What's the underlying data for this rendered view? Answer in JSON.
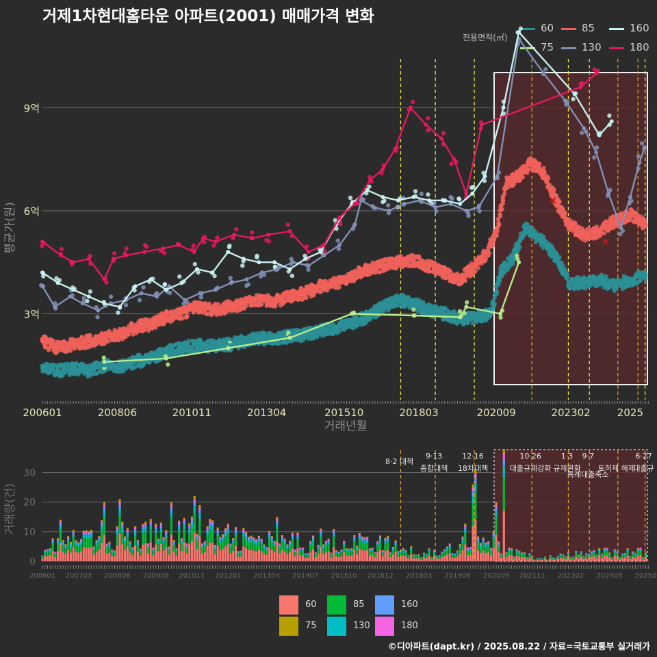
{
  "title": "거제1차현대홈타운 아파트(2001) 매매가격 변화",
  "footer": "©디아파트(dapt.kr) / 2025.08.22 / 자료=국토교통부 실거래가",
  "colors": {
    "60": "#2a9196",
    "75": "#b8ec8c",
    "85": "#f0615b",
    "130": "#8290b6",
    "160": "#c7f0ef",
    "180": "#e5195e",
    "bar60": "#f8766d",
    "bar75": "#b79f00",
    "bar85": "#00ba38",
    "bar130": "#00bfc4",
    "bar160": "#619cff",
    "bar180": "#f564e3",
    "event_orange": "#e0a020",
    "event_yellow": "#e8e83a",
    "highlight_fill": "#5a2a2c"
  },
  "legend_top": {
    "title": "전용면적(㎡)",
    "items": [
      {
        "label": "60",
        "color_key": "60"
      },
      {
        "label": "85",
        "color_key": "85"
      },
      {
        "label": "160",
        "color_key": "160"
      },
      {
        "label": "75",
        "color_key": "75"
      },
      {
        "label": "130",
        "color_key": "130"
      },
      {
        "label": "180",
        "color_key": "180"
      }
    ]
  },
  "legend_bottom": {
    "items": [
      {
        "label": "60",
        "color_key": "bar60"
      },
      {
        "label": "85",
        "color_key": "bar85"
      },
      {
        "label": "160",
        "color_key": "bar160"
      },
      {
        "label": "75",
        "color_key": "bar75"
      },
      {
        "label": "130",
        "color_key": "bar130"
      },
      {
        "label": "180",
        "color_key": "bar180"
      }
    ]
  },
  "chart_data": [
    {
      "type": "line",
      "id": "price",
      "ylabel": "평균가(원)",
      "xlabel": "거래년월",
      "ylim": [
        0.5,
        10.5
      ],
      "y_ticks": [
        {
          "v": 3,
          "label": "3억"
        },
        {
          "v": 6,
          "label": "6억"
        },
        {
          "v": 9,
          "label": "9억"
        }
      ],
      "x_range": [
        2006.0,
        2025.6
      ],
      "x_ticks": [
        {
          "v": 2006.0,
          "label": "200601"
        },
        {
          "v": 2008.42,
          "label": "200806"
        },
        {
          "v": 2010.83,
          "label": "201011"
        },
        {
          "v": 2013.25,
          "label": "201304"
        },
        {
          "v": 2015.75,
          "label": "201510"
        },
        {
          "v": 2018.17,
          "label": "201803"
        },
        {
          "v": 2020.67,
          "label": "202009"
        },
        {
          "v": 2023.08,
          "label": "202302"
        },
        {
          "v": 2025.0,
          "label": "2025"
        }
      ],
      "highlight_range": [
        2020.6,
        2025.6
      ],
      "events": [
        {
          "x": 2017.58,
          "style": "yellow"
        },
        {
          "x": 2018.7,
          "style": "yellow"
        },
        {
          "x": 2019.96,
          "style": "yellow"
        },
        {
          "x": 2021.82,
          "style": "orange"
        },
        {
          "x": 2023.0,
          "style": "yellow"
        },
        {
          "x": 2023.68,
          "style": "yellow"
        },
        {
          "x": 2024.6,
          "style": "orange"
        },
        {
          "x": 2025.25,
          "style": "orange"
        },
        {
          "x": 2025.48,
          "style": "yellow"
        }
      ],
      "markers": [
        {
          "x": 2022.5,
          "y": 6.3,
          "series": "85"
        },
        {
          "x": 2024.2,
          "y": 5.1,
          "series": "85"
        }
      ],
      "series": [
        {
          "name": "60",
          "color_key": "60",
          "x": [
            2006.0,
            2006.5,
            2007.0,
            2007.5,
            2008.0,
            2008.5,
            2009.0,
            2009.5,
            2010.0,
            2010.5,
            2011.0,
            2011.5,
            2012.0,
            2012.5,
            2013.0,
            2013.5,
            2014.0,
            2014.5,
            2015.0,
            2015.5,
            2016.0,
            2016.5,
            2017.0,
            2017.5,
            2018.0,
            2018.5,
            2019.0,
            2019.5,
            2020.0,
            2020.5,
            2020.8,
            2021.2,
            2021.6,
            2022.0,
            2022.3,
            2022.7,
            2023.0,
            2023.5,
            2024.0,
            2024.5,
            2025.0,
            2025.5
          ],
          "y": [
            1.4,
            1.35,
            1.4,
            1.35,
            1.5,
            1.45,
            1.6,
            1.7,
            1.9,
            2.0,
            2.1,
            2.05,
            2.1,
            2.2,
            2.3,
            2.25,
            2.35,
            2.4,
            2.5,
            2.6,
            2.75,
            2.9,
            3.2,
            3.4,
            3.3,
            3.1,
            3.0,
            2.85,
            2.9,
            3.0,
            4.2,
            4.6,
            5.5,
            5.2,
            5.0,
            4.5,
            3.9,
            3.9,
            4.0,
            3.8,
            4.0,
            4.1
          ]
        },
        {
          "name": "75",
          "color_key": "75",
          "x": [
            2008.0,
            2010.0,
            2012.0,
            2014.0,
            2016.0,
            2018.0,
            2019.5,
            2019.7,
            2020.8,
            2021.4
          ],
          "y": [
            1.6,
            1.7,
            2.0,
            2.3,
            3.0,
            2.95,
            2.9,
            3.2,
            3.0,
            4.5
          ]
        },
        {
          "name": "85",
          "color_key": "85",
          "x": [
            2006.0,
            2006.5,
            2007.0,
            2007.5,
            2008.0,
            2008.5,
            2009.0,
            2009.5,
            2010.0,
            2010.5,
            2011.0,
            2011.5,
            2012.0,
            2012.5,
            2013.0,
            2013.5,
            2014.0,
            2014.5,
            2015.0,
            2015.5,
            2016.0,
            2016.5,
            2017.0,
            2017.5,
            2018.0,
            2018.5,
            2019.0,
            2019.5,
            2020.0,
            2020.4,
            2020.7,
            2021.0,
            2021.4,
            2021.8,
            2022.2,
            2022.6,
            2023.0,
            2023.5,
            2024.0,
            2024.5,
            2025.0,
            2025.5
          ],
          "y": [
            2.2,
            2.0,
            2.1,
            2.2,
            2.3,
            2.4,
            2.6,
            2.7,
            2.9,
            3.0,
            3.2,
            3.1,
            3.2,
            3.3,
            3.4,
            3.35,
            3.5,
            3.6,
            3.8,
            3.9,
            4.1,
            4.3,
            4.4,
            4.5,
            4.55,
            4.4,
            4.2,
            4.0,
            4.4,
            4.8,
            5.5,
            6.8,
            7.0,
            7.4,
            7.1,
            6.3,
            5.6,
            5.3,
            5.4,
            5.7,
            5.9,
            5.6
          ]
        },
        {
          "name": "130",
          "color_key": "130",
          "x": [
            2006.0,
            2006.4,
            2006.9,
            2007.3,
            2007.8,
            2008.2,
            2008.7,
            2009.2,
            2009.7,
            2010.1,
            2010.6,
            2011.1,
            2011.6,
            2012.1,
            2012.6,
            2013.1,
            2013.6,
            2014.1,
            2014.6,
            2015.1,
            2015.6,
            2016.1,
            2016.3,
            2016.7,
            2017.2,
            2017.7,
            2018.2,
            2018.7,
            2019.2,
            2019.7,
            2020.1,
            2020.7,
            2021.4,
            2022.2,
            2022.9,
            2023.5,
            2023.9,
            2024.3,
            2024.7,
            2025.0,
            2025.3,
            2025.45
          ],
          "y": [
            3.8,
            3.2,
            3.5,
            3.3,
            3.1,
            3.3,
            3.4,
            3.6,
            3.5,
            3.8,
            3.4,
            3.6,
            3.7,
            3.9,
            4.0,
            4.2,
            4.3,
            4.5,
            4.4,
            4.7,
            5.0,
            5.6,
            6.3,
            6.1,
            6.0,
            6.2,
            6.3,
            6.1,
            6.2,
            6.0,
            6.1,
            7.0,
            11.0,
            10.0,
            9.2,
            8.4,
            7.7,
            6.5,
            5.5,
            6.4,
            7.4,
            7.8
          ]
        },
        {
          "name": "160",
          "color_key": "160",
          "x": [
            2006.0,
            2006.5,
            2007.0,
            2007.5,
            2008.0,
            2008.5,
            2009.0,
            2009.5,
            2010.0,
            2010.5,
            2011.0,
            2011.5,
            2012.0,
            2012.5,
            2013.0,
            2013.5,
            2014.0,
            2014.5,
            2015.0,
            2015.5,
            2016.0,
            2016.5,
            2017.0,
            2017.5,
            2018.0,
            2018.5,
            2019.0,
            2019.5,
            2019.9,
            2020.3,
            2020.9,
            2021.4,
            2023.2,
            2024.0,
            2024.4
          ],
          "y": [
            4.2,
            3.9,
            3.7,
            3.5,
            3.3,
            3.2,
            3.8,
            4.0,
            3.7,
            3.9,
            4.3,
            4.2,
            4.8,
            4.6,
            4.5,
            4.5,
            4.3,
            4.6,
            4.8,
            5.6,
            6.2,
            6.6,
            6.4,
            6.3,
            6.4,
            6.3,
            6.3,
            6.2,
            6.5,
            7.0,
            9.0,
            11.2,
            9.4,
            8.2,
            8.6
          ]
        },
        {
          "name": "180",
          "color_key": "180",
          "x": [
            2006.0,
            2006.6,
            2007.0,
            2007.5,
            2008.0,
            2008.3,
            2008.7,
            2009.3,
            2009.9,
            2010.4,
            2010.9,
            2011.2,
            2011.6,
            2012.2,
            2012.8,
            2013.3,
            2014.0,
            2014.6,
            2015.1,
            2015.6,
            2016.1,
            2016.6,
            2017.0,
            2017.4,
            2017.9,
            2018.4,
            2018.9,
            2019.3,
            2019.7,
            2020.2,
            2023.4,
            2023.9
          ],
          "y": [
            5.1,
            4.7,
            4.5,
            4.6,
            4.0,
            4.6,
            4.7,
            4.8,
            4.9,
            5.0,
            4.8,
            5.2,
            5.1,
            5.3,
            5.2,
            5.3,
            5.4,
            4.8,
            5.0,
            5.8,
            6.2,
            6.9,
            7.2,
            7.8,
            9.0,
            8.5,
            8.1,
            7.5,
            6.5,
            8.5,
            9.6,
            10.0
          ]
        }
      ]
    },
    {
      "type": "bar",
      "id": "volume",
      "ylabel": "거래량(건)",
      "ylim": [
        0,
        38
      ],
      "y_ticks": [
        {
          "v": 0,
          "label": "0"
        },
        {
          "v": 10,
          "label": "10"
        },
        {
          "v": 20,
          "label": "20"
        },
        {
          "v": 30,
          "label": "30"
        }
      ],
      "x_range": [
        2006.0,
        2025.6
      ],
      "x_ticks": [
        {
          "v": 2006.0,
          "label": "200601"
        },
        {
          "v": 2007.17,
          "label": "200703"
        },
        {
          "v": 2008.42,
          "label": "200806"
        },
        {
          "v": 2009.67,
          "label": "200908"
        },
        {
          "v": 2010.83,
          "label": "201011"
        },
        {
          "v": 2012.0,
          "label": "201201"
        },
        {
          "v": 2013.25,
          "label": "201304"
        },
        {
          "v": 2014.5,
          "label": "201407"
        },
        {
          "v": 2015.75,
          "label": "201510"
        },
        {
          "v": 2016.92,
          "label": "201612"
        },
        {
          "v": 2018.17,
          "label": "201803"
        },
        {
          "v": 2019.42,
          "label": "201906"
        },
        {
          "v": 2020.67,
          "label": "202009"
        },
        {
          "v": 2021.83,
          "label": "202111"
        },
        {
          "v": 2023.08,
          "label": "202302"
        },
        {
          "v": 2024.33,
          "label": "202405"
        },
        {
          "v": 2025.5,
          "label": "20250"
        }
      ],
      "highlight_range": [
        2020.6,
        2025.6
      ],
      "events": [
        {
          "x": 2017.58,
          "style": "orange",
          "label1": "8·2 대책",
          "label2": ""
        },
        {
          "x": 2018.7,
          "style": "orange",
          "label1": "9·13",
          "label2": "종합대책"
        },
        {
          "x": 2019.96,
          "style": "orange",
          "label1": "12·16",
          "label2": "18차대책"
        },
        {
          "x": 2021.82,
          "style": "orange",
          "label1": "10·26",
          "label2": "대출규제강화"
        },
        {
          "x": 2023.0,
          "style": "orange",
          "label1": "1·3",
          "label2": "규제완화"
        },
        {
          "x": 2023.68,
          "style": "orange",
          "label1": "9·7",
          "label2": "특례대출축소"
        },
        {
          "x": 2024.6,
          "style": "orange",
          "label1": "",
          "label2": "토허제 해제"
        },
        {
          "x": 2025.48,
          "style": "orange",
          "label1": "6·27",
          "label2": "대출규"
        }
      ],
      "series_order": [
        "60",
        "85",
        "130",
        "160",
        "180",
        "75"
      ],
      "series_colors": {
        "60": "bar60",
        "75": "bar75",
        "85": "bar85",
        "130": "bar130",
        "160": "bar160",
        "180": "bar180"
      },
      "avg_profile": [
        {
          "x": 2006.0,
          "v": 5
        },
        {
          "x": 2007.0,
          "v": 7
        },
        {
          "x": 2008.0,
          "v": 9
        },
        {
          "x": 2009.0,
          "v": 8
        },
        {
          "x": 2010.0,
          "v": 10
        },
        {
          "x": 2011.0,
          "v": 11
        },
        {
          "x": 2012.0,
          "v": 8
        },
        {
          "x": 2013.0,
          "v": 7
        },
        {
          "x": 2014.0,
          "v": 6
        },
        {
          "x": 2015.0,
          "v": 7
        },
        {
          "x": 2016.0,
          "v": 7
        },
        {
          "x": 2017.0,
          "v": 6
        },
        {
          "x": 2018.0,
          "v": 3
        },
        {
          "x": 2019.0,
          "v": 3
        },
        {
          "x": 2019.8,
          "v": 10
        },
        {
          "x": 2020.4,
          "v": 8
        },
        {
          "x": 2021.0,
          "v": 4
        },
        {
          "x": 2022.0,
          "v": 1
        },
        {
          "x": 2023.0,
          "v": 2
        },
        {
          "x": 2024.0,
          "v": 3
        },
        {
          "x": 2025.0,
          "v": 3
        },
        {
          "x": 2025.6,
          "v": 3
        }
      ],
      "peaks": [
        {
          "x": 2008.5,
          "v": 21
        },
        {
          "x": 2008.0,
          "v": 20
        },
        {
          "x": 2010.2,
          "v": 20
        },
        {
          "x": 2010.9,
          "v": 22
        },
        {
          "x": 2011.1,
          "v": 19
        },
        {
          "x": 2006.6,
          "v": 14
        },
        {
          "x": 2013.6,
          "v": 15
        },
        {
          "x": 2019.9,
          "v": 26
        },
        {
          "x": 2020.0,
          "v": 31
        },
        {
          "x": 2020.7,
          "v": 20
        },
        {
          "x": 2020.9,
          "v": 38
        }
      ]
    }
  ]
}
